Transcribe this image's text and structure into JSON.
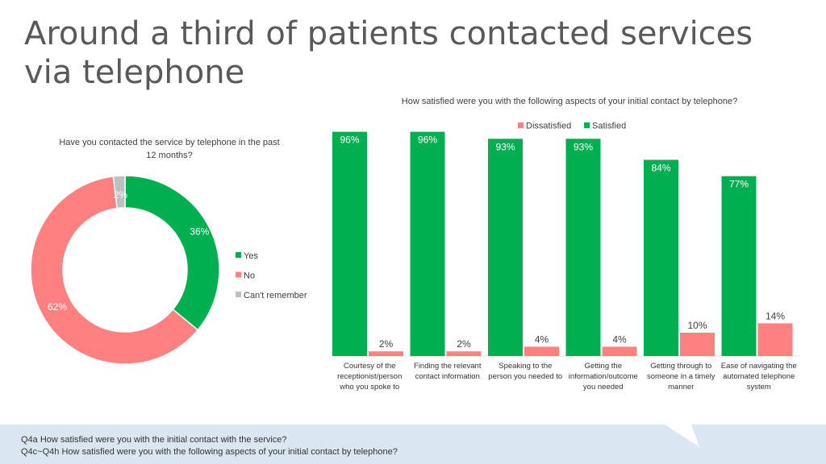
{
  "page": {
    "title": "Around a third of patients contacted services via telephone",
    "footer": [
      "Q4a How satisfied were you with the initial contact with the service?",
      "Q4c~Q4h How satisfied were you with the following aspects of your initial contact by telephone?"
    ]
  },
  "colors": {
    "green": "#00b050",
    "pink": "#ff8080",
    "grey": "#bfbfbf",
    "text": "#404040"
  },
  "chart_data": [
    {
      "type": "pie",
      "donut": true,
      "title": "Have you contacted the service by telephone in the past 12 months?",
      "title_lines": [
        "Have you contacted the service by telephone in the past",
        "12 months?"
      ],
      "slices": [
        {
          "label": "Yes",
          "value": 36,
          "data_label": "36%"
        },
        {
          "label": "No",
          "value": 62,
          "data_label": "62%"
        },
        {
          "label": "Can't remember",
          "value": 2,
          "data_label": "2%"
        }
      ],
      "legend_position": "right"
    },
    {
      "type": "bar",
      "title": "How satisfied were you with the following aspects of your initial contact by telephone?",
      "categories": [
        [
          "Courtesy of the",
          "receptionist/person",
          "who you spoke to"
        ],
        [
          "Finding the relevant",
          "contact information"
        ],
        [
          "Speaking to the",
          "person you needed to"
        ],
        [
          "Getting the",
          "information/outcome",
          "you needed"
        ],
        [
          "Getting through to",
          "someone in a timely",
          "manner"
        ],
        [
          "Ease of navigating the",
          "automated telephone",
          "system"
        ]
      ],
      "series": [
        {
          "name": "Dissatisfied",
          "values": [
            2,
            2,
            4,
            4,
            10,
            14
          ],
          "labels": [
            "2%",
            "2%",
            "4%",
            "4%",
            "10%",
            "14%"
          ]
        },
        {
          "name": "Satisfied",
          "values": [
            96,
            96,
            93,
            93,
            84,
            77
          ],
          "labels": [
            "96%",
            "96%",
            "93%",
            "93%",
            "84%",
            "77%"
          ]
        }
      ],
      "ylim": [
        0,
        100
      ],
      "legend_position": "top"
    }
  ]
}
